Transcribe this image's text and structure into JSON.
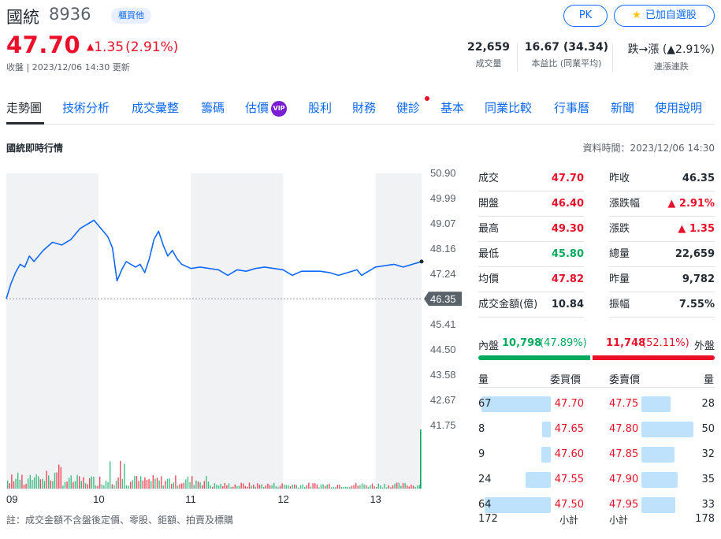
{
  "header": {
    "name": "國統",
    "code": "8936",
    "market": "櫃買他",
    "pk_label": "PK",
    "watch_label": "已加自選股",
    "price": "47.70",
    "change": "1.35",
    "change_pct": "(2.91%)",
    "status": "收盤 | 2023/12/06 14:30 更新",
    "stats": [
      {
        "value": "22,659",
        "label": "成交量"
      },
      {
        "value": "16.67 (34.34)",
        "label": "本益比 (同業平均)"
      },
      {
        "value": "跌→漲 (▲2.91%)",
        "label": "連漲連跌"
      }
    ]
  },
  "tabs": [
    {
      "label": "走勢圖"
    },
    {
      "label": "技術分析"
    },
    {
      "label": "成交彙整"
    },
    {
      "label": "籌碼"
    },
    {
      "label": "估價",
      "badge": "VIP"
    },
    {
      "label": "股利"
    },
    {
      "label": "財務"
    },
    {
      "label": "健診"
    },
    {
      "label": "基本"
    },
    {
      "label": "同業比較"
    },
    {
      "label": "行事曆"
    },
    {
      "label": "新聞"
    },
    {
      "label": "使用說明"
    }
  ],
  "section": {
    "title": "國統即時行情",
    "data_time": "資料時間：2023/12/06 14:30"
  },
  "quote": {
    "left": [
      {
        "key": "成交",
        "value": "47.70",
        "color": "#eb0f29"
      },
      {
        "key": "開盤",
        "value": "46.40",
        "color": "#eb0f29"
      },
      {
        "key": "最高",
        "value": "49.30",
        "color": "#eb0f29"
      },
      {
        "key": "最低",
        "value": "45.80",
        "color": "#00ab5e"
      },
      {
        "key": "均價",
        "value": "47.82",
        "color": "#eb0f29"
      },
      {
        "key": "成交金額(億)",
        "value": "10.84",
        "color": "#232a31"
      }
    ],
    "right": [
      {
        "key": "昨收",
        "value": "46.35",
        "color": "#232a31"
      },
      {
        "key": "漲跌幅",
        "value": "▲ 2.91%",
        "color": "#eb0f29"
      },
      {
        "key": "漲跌",
        "value": "▲ 1.35",
        "color": "#eb0f29"
      },
      {
        "key": "總量",
        "value": "22,659",
        "color": "#232a31"
      },
      {
        "key": "昨量",
        "value": "9,782",
        "color": "#232a31"
      },
      {
        "key": "振幅",
        "value": "7.55%",
        "color": "#232a31"
      }
    ]
  },
  "inner_outer": {
    "inner_label": "內盤",
    "inner_value": "10,798",
    "inner_pct": "(47.89%)",
    "outer_value": "11,748",
    "outer_pct": "(52.11%)",
    "outer_label": "外盤",
    "inner_fraction": 0.4789
  },
  "orderbook": {
    "bid_vol_label": "量",
    "bid_price_label": "委買價",
    "ask_price_label": "委賣價",
    "ask_vol_label": "量",
    "bids": [
      {
        "vol": "67",
        "price": "47.70",
        "v": 67
      },
      {
        "vol": "8",
        "price": "47.65",
        "v": 8
      },
      {
        "vol": "9",
        "price": "47.60",
        "v": 9
      },
      {
        "vol": "24",
        "price": "47.55",
        "v": 24
      },
      {
        "vol": "64",
        "price": "47.50",
        "v": 64
      }
    ],
    "asks": [
      {
        "price": "47.75",
        "vol": "28",
        "v": 28
      },
      {
        "price": "47.80",
        "vol": "50",
        "v": 50
      },
      {
        "price": "47.85",
        "vol": "32",
        "v": 32
      },
      {
        "price": "47.90",
        "vol": "35",
        "v": 35
      },
      {
        "price": "47.95",
        "vol": "33",
        "v": 33
      }
    ],
    "bid_total": "172",
    "subtotal_label": "小計",
    "ask_total": "178"
  },
  "footnote": "註：成交金額不含盤後定價、零股、鉅額、拍賣及標購",
  "chart_data": {
    "type": "line",
    "y_ticks": [
      "50.90",
      "49.99",
      "49.07",
      "48.16",
      "47.24",
      "46.35",
      "45.41",
      "44.50",
      "43.58",
      "42.67",
      "41.75"
    ],
    "x_ticks": [
      "09",
      "10",
      "11",
      "12",
      "13"
    ],
    "ylim": [
      41.75,
      50.9
    ],
    "prev_close": 46.35,
    "last_price_label": "46.35",
    "price_series": [
      [
        9.0,
        46.35
      ],
      [
        9.05,
        46.9
      ],
      [
        9.1,
        47.3
      ],
      [
        9.15,
        47.6
      ],
      [
        9.2,
        47.5
      ],
      [
        9.25,
        47.9
      ],
      [
        9.3,
        47.7
      ],
      [
        9.4,
        48.1
      ],
      [
        9.5,
        48.4
      ],
      [
        9.6,
        48.3
      ],
      [
        9.7,
        48.5
      ],
      [
        9.8,
        48.9
      ],
      [
        9.9,
        49.1
      ],
      [
        9.95,
        49.2
      ],
      [
        10.0,
        49.0
      ],
      [
        10.05,
        48.8
      ],
      [
        10.1,
        48.6
      ],
      [
        10.15,
        48.2
      ],
      [
        10.2,
        47.0
      ],
      [
        10.25,
        47.4
      ],
      [
        10.3,
        47.7
      ],
      [
        10.4,
        47.5
      ],
      [
        10.45,
        47.6
      ],
      [
        10.5,
        47.3
      ],
      [
        10.55,
        47.8
      ],
      [
        10.6,
        48.5
      ],
      [
        10.65,
        48.8
      ],
      [
        10.7,
        48.3
      ],
      [
        10.75,
        47.9
      ],
      [
        10.8,
        48.1
      ],
      [
        10.85,
        47.8
      ],
      [
        10.9,
        47.6
      ],
      [
        11.0,
        47.45
      ],
      [
        11.1,
        47.5
      ],
      [
        11.2,
        47.45
      ],
      [
        11.3,
        47.4
      ],
      [
        11.4,
        47.2
      ],
      [
        11.5,
        47.4
      ],
      [
        11.6,
        47.35
      ],
      [
        11.7,
        47.45
      ],
      [
        11.8,
        47.5
      ],
      [
        11.9,
        47.45
      ],
      [
        12.0,
        47.4
      ],
      [
        12.1,
        47.2
      ],
      [
        12.2,
        47.35
      ],
      [
        12.3,
        47.35
      ],
      [
        12.4,
        47.35
      ],
      [
        12.5,
        47.3
      ],
      [
        12.6,
        47.2
      ],
      [
        12.7,
        47.3
      ],
      [
        12.8,
        47.4
      ],
      [
        12.85,
        47.2
      ],
      [
        12.9,
        47.3
      ],
      [
        12.95,
        47.4
      ],
      [
        13.0,
        47.5
      ],
      [
        13.1,
        47.55
      ],
      [
        13.2,
        47.6
      ],
      [
        13.3,
        47.5
      ],
      [
        13.35,
        47.55
      ],
      [
        13.4,
        47.6
      ],
      [
        13.45,
        47.65
      ],
      [
        13.5,
        47.7
      ]
    ],
    "volume_max": 1200
  }
}
